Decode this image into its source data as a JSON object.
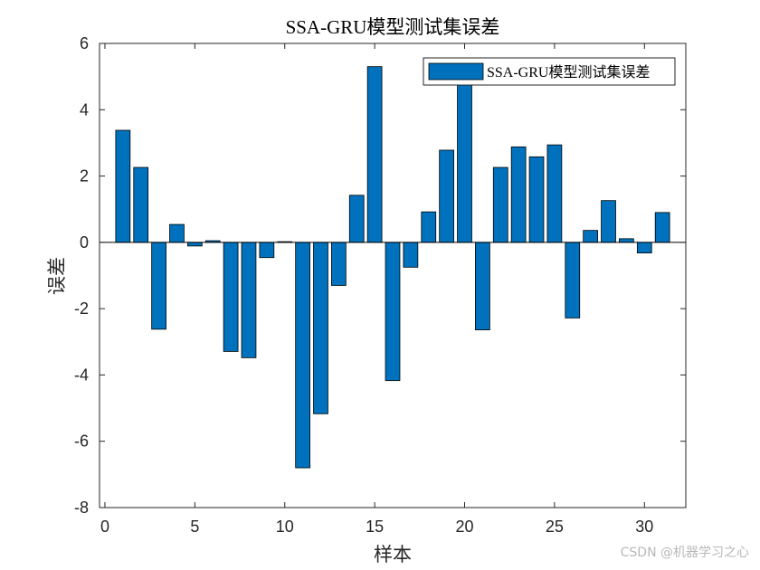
{
  "chart_data": {
    "type": "bar",
    "title": "SSA-GRU模型测试集误差",
    "xlabel": "样本",
    "ylabel": "误差",
    "legend": {
      "entries": [
        "SSA-GRU模型测试集误差"
      ],
      "placement": "top-right"
    },
    "x": [
      1,
      2,
      3,
      4,
      5,
      6,
      7,
      8,
      9,
      10,
      11,
      12,
      13,
      14,
      15,
      16,
      17,
      18,
      19,
      20,
      21,
      22,
      23,
      24,
      25,
      26,
      27,
      28,
      29,
      30,
      31
    ],
    "values": [
      3.38,
      2.26,
      -2.62,
      0.54,
      -0.11,
      0.05,
      -3.29,
      -3.48,
      -0.46,
      0.02,
      -6.8,
      -5.17,
      -1.3,
      1.42,
      5.3,
      -4.17,
      -0.75,
      0.92,
      2.78,
      4.83,
      -2.64,
      2.26,
      2.88,
      2.58,
      2.94,
      -2.28,
      0.36,
      1.26,
      0.11,
      -0.32,
      0.9
    ],
    "xlim": [
      -0.3,
      32.3
    ],
    "ylim": [
      -8,
      6
    ],
    "xticks": [
      0,
      5,
      10,
      15,
      20,
      25,
      30
    ],
    "yticks": [
      -8,
      -6,
      -4,
      -2,
      0,
      2,
      4,
      6
    ],
    "grid": false,
    "colors": {
      "bar": "#0072BD",
      "edge": "#000000"
    }
  },
  "watermark": "CSDN @机器学习之心"
}
